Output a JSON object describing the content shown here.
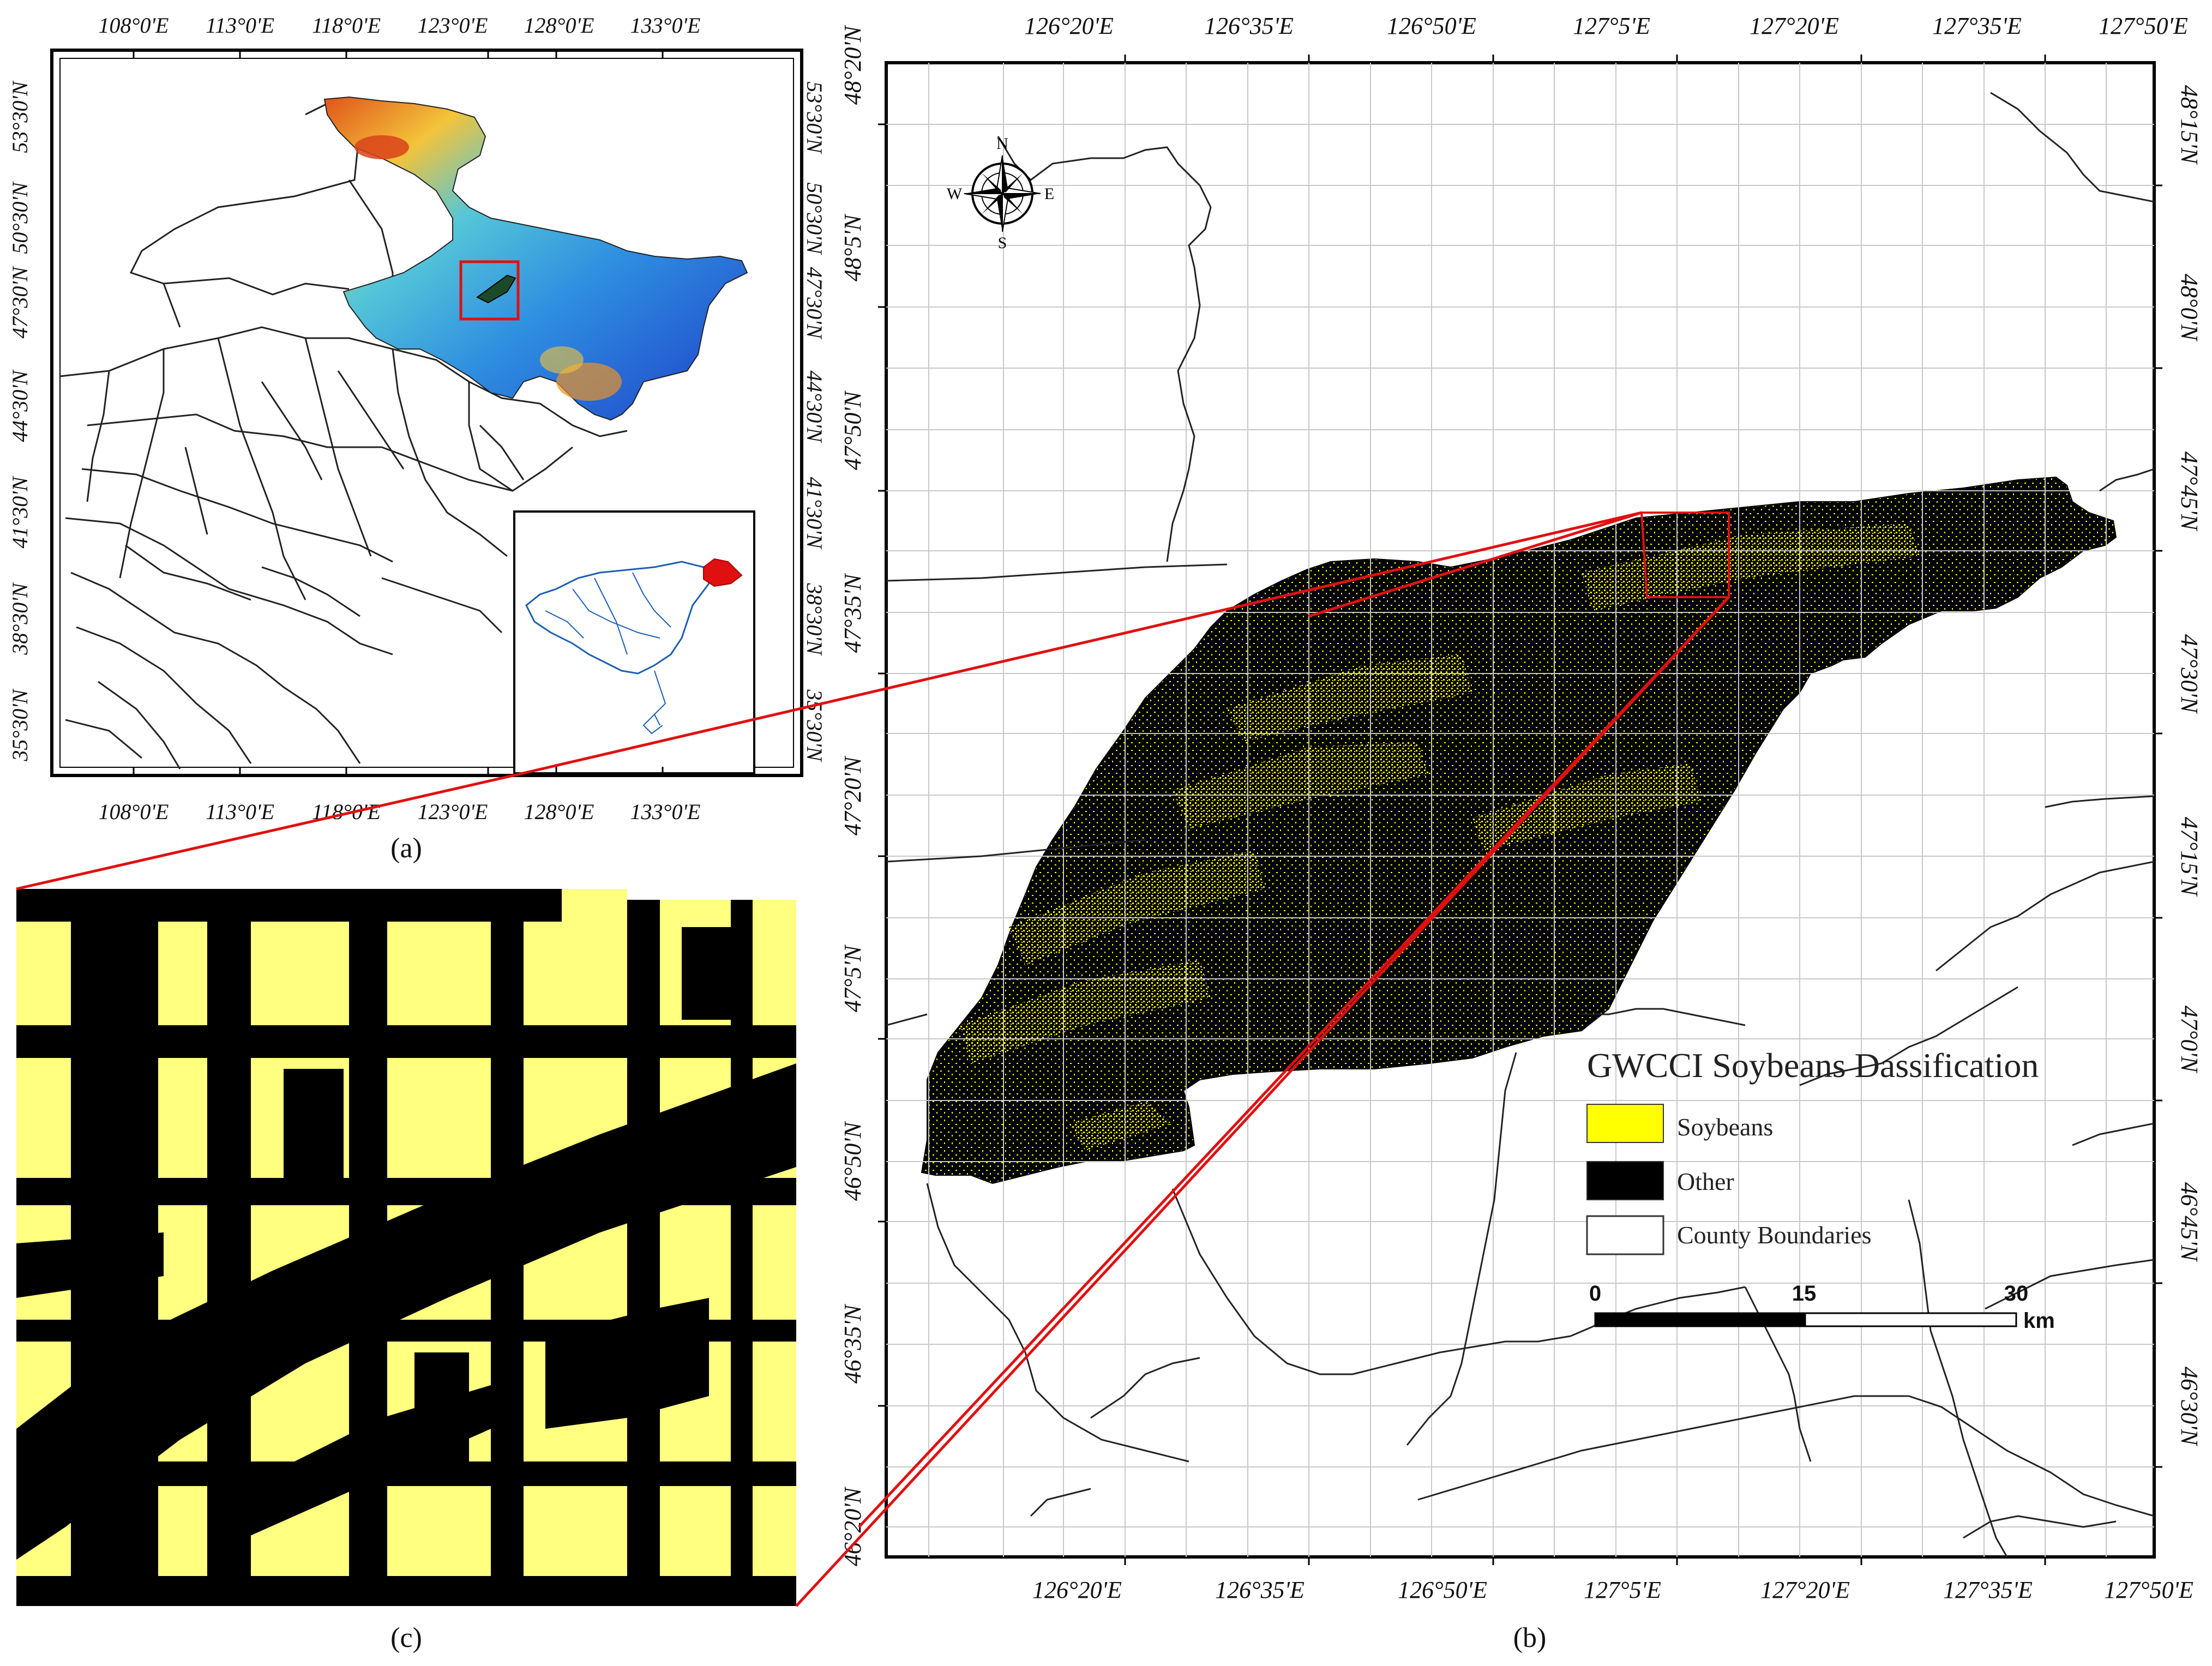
{
  "panels": {
    "a": {
      "caption": "(a)",
      "lon_labels": [
        "108°0'E",
        "113°0'E",
        "118°0'E",
        "123°0'E",
        "128°0'E",
        "133°0'E"
      ],
      "lat_labels": [
        "53°30'N",
        "50°30'N",
        "47°30'N",
        "44°30'N",
        "41°30'N",
        "38°30'N",
        "35°30'N"
      ]
    },
    "b": {
      "caption": "(b)",
      "lon_labels": [
        "126°20'E",
        "126°35'E",
        "126°50'E",
        "127°5'E",
        "127°20'E",
        "127°35'E",
        "127°50'E"
      ],
      "lat_labels_left": [
        "48°20'N",
        "48°5'N",
        "47°50'N",
        "47°35'N",
        "47°20'N",
        "47°5'N",
        "46°50'N",
        "46°35'N",
        "46°20'N"
      ],
      "lat_labels_right": [
        "48°15'N",
        "48°0'N",
        "47°45'N",
        "47°30'N",
        "47°15'N",
        "47°0'N",
        "46°45'N",
        "46°30'N"
      ],
      "compass": {
        "n": "N",
        "s": "S",
        "e": "E",
        "w": "W"
      }
    },
    "c": {
      "caption": "(c)"
    }
  },
  "legend": {
    "title": "GWCCI Soybeans Dassification",
    "items": [
      {
        "label": "Soybeans",
        "color": "#ffff00"
      },
      {
        "label": "Other",
        "color": "#000000"
      },
      {
        "label": "County Boundaries",
        "color": "#ffffff"
      }
    ]
  },
  "scale_bar": {
    "ticks": [
      "0",
      "15",
      "30"
    ],
    "unit": "km"
  },
  "colors": {
    "soybean_bright": "#ffff00",
    "soybean_pale": "#ffff80",
    "other": "#000000",
    "highlight": "#e01010",
    "china_outline": "#1a5fb4"
  }
}
